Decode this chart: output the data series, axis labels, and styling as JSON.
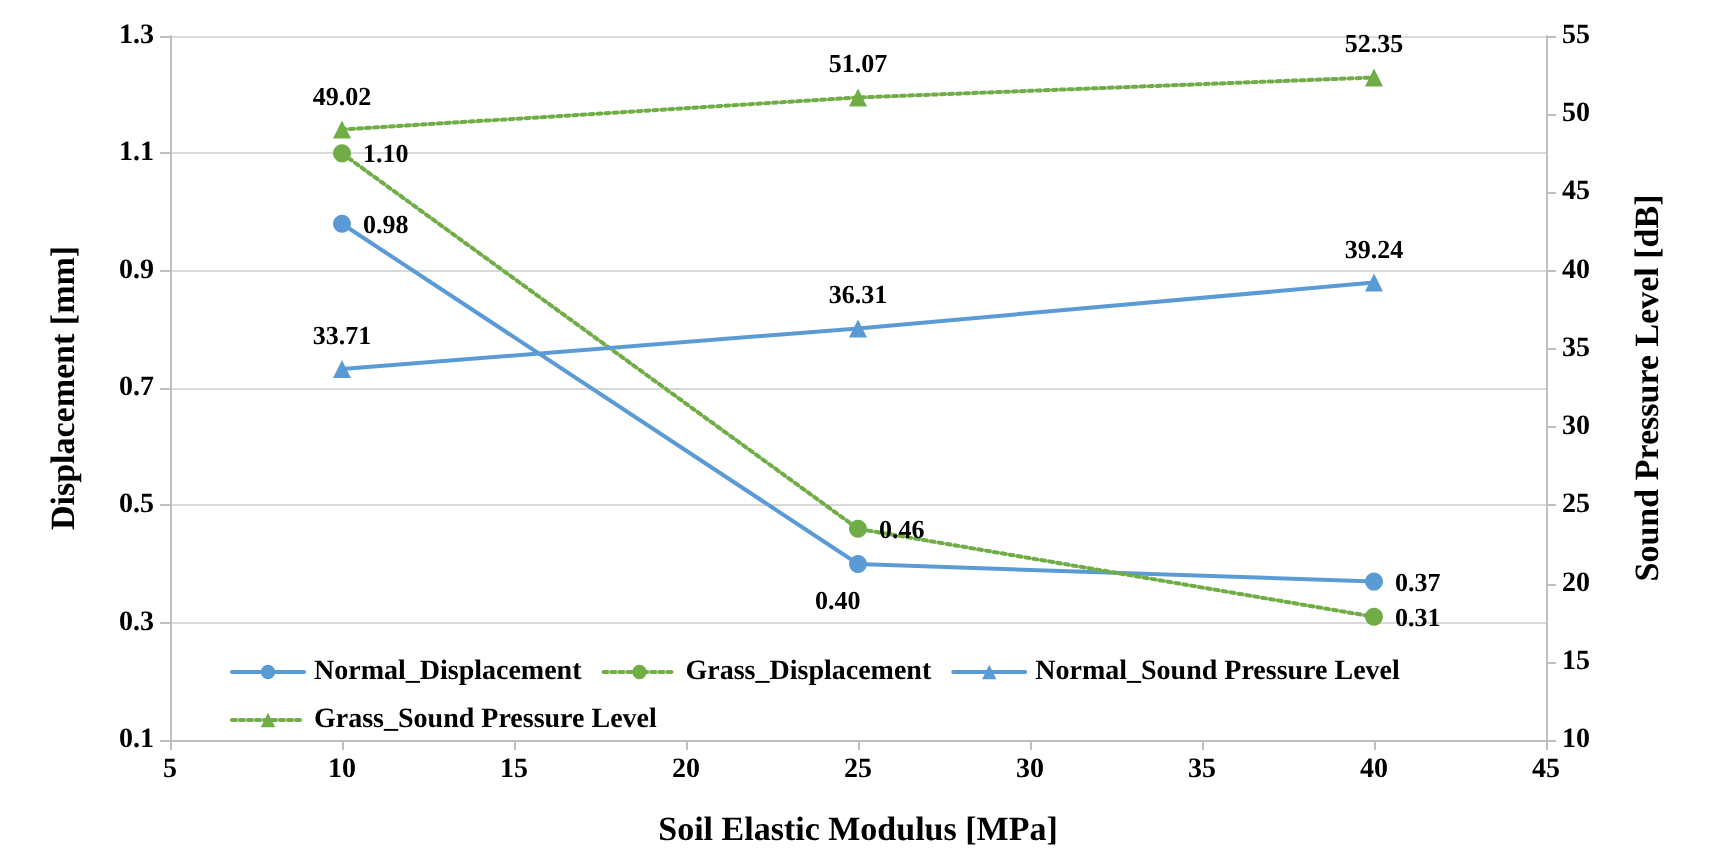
{
  "chart_data": {
    "type": "line",
    "xlabel": "Soil Elastic Modulus [MPa]",
    "ylabel": "Displacement [mm]",
    "y2label": "Sound Pressure Level [dB]",
    "x": [
      10,
      25,
      40
    ],
    "series": [
      {
        "name": "Normal_Displacement",
        "color": "#5b9bd5",
        "values": [
          0.98,
          0.4,
          0.37
        ],
        "value_labels": [
          "0.98",
          "0.40",
          "0.37"
        ],
        "marker": "circle",
        "line_style": "solid"
      },
      {
        "name": "Grass_Displacement",
        "color": "#70ad47",
        "values": [
          1.1,
          0.46,
          0.31
        ],
        "value_labels": [
          "1.10",
          "0.46",
          "0.31"
        ],
        "marker": "circle",
        "line_style": "dotted"
      },
      {
        "name": "Normal_Sound Pressure Level",
        "color": "#5b9bd5",
        "values": [
          33.71,
          36.31,
          39.24
        ],
        "value_labels": [
          "33.71",
          "36.31",
          "39.24"
        ],
        "marker": "triangle",
        "line_style": "solid",
        "axis": "y2"
      },
      {
        "name": "Grass_Sound Pressure Level",
        "color": "#70ad47",
        "values": [
          49.02,
          51.07,
          52.35
        ],
        "value_labels": [
          "49.02",
          "51.07",
          "52.35"
        ],
        "marker": "triangle",
        "line_style": "dotted",
        "axis": "y2"
      }
    ],
    "xlim": [
      5,
      45
    ],
    "xticks": [
      5,
      10,
      15,
      20,
      25,
      30,
      35,
      40,
      45
    ],
    "ylim": [
      0.1,
      1.3
    ],
    "yticks": [
      {
        "value": 0.1,
        "label": "0.1"
      },
      {
        "value": 0.3,
        "label": "0.3"
      },
      {
        "value": 0.5,
        "label": "0.5"
      },
      {
        "value": 0.7,
        "label": "0.7"
      },
      {
        "value": 0.9,
        "label": "0.9"
      },
      {
        "value": 1.1,
        "label": "1.1"
      },
      {
        "value": 1.3,
        "label": "1.3"
      }
    ],
    "y2lim": [
      10,
      55
    ],
    "y2ticks": [
      10,
      15,
      20,
      25,
      30,
      35,
      40,
      45,
      50,
      55
    ],
    "grid": "y",
    "legend": "bottom"
  }
}
